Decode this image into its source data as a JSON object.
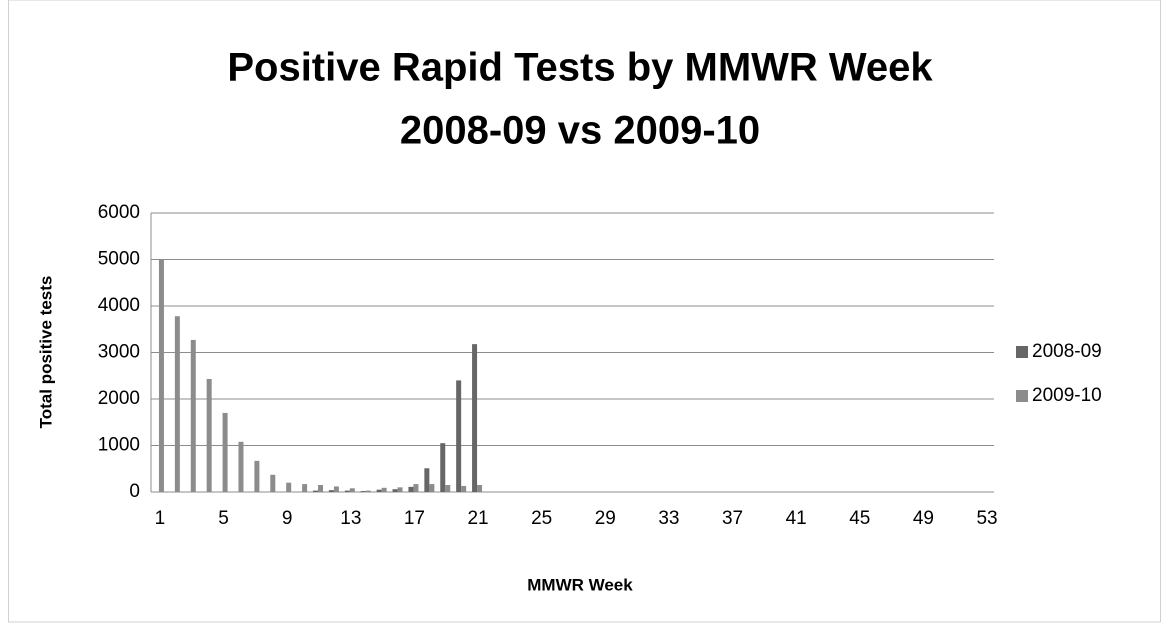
{
  "chart_data": {
    "type": "bar",
    "title": [
      "Positive Rapid Tests by MMWR Week",
      "2008-09 vs 2009-10"
    ],
    "x_label": "MMWR Week",
    "y_label": "Total positive tests",
    "categories": [
      1,
      null,
      null,
      null,
      5,
      null,
      null,
      null,
      9,
      null,
      null,
      null,
      13,
      null,
      null,
      null,
      17,
      null,
      null,
      null,
      21,
      null,
      null,
      null,
      25,
      null,
      null,
      null,
      29,
      null,
      null,
      null,
      33,
      null,
      null,
      null,
      37,
      null,
      null,
      null,
      41,
      null,
      null,
      null,
      45,
      null,
      null,
      null,
      49,
      null,
      null,
      null,
      53
    ],
    "series": [
      {
        "name": "2008-09",
        "color": "#666666",
        "values": [
          0,
          0,
          0,
          0,
          0,
          0,
          0,
          0,
          0,
          0,
          30,
          40,
          30,
          20,
          50,
          60,
          110,
          510,
          1050,
          2400,
          3180,
          null,
          null,
          null,
          null,
          null,
          null,
          null,
          null,
          null,
          null,
          null,
          null,
          null,
          null,
          null,
          null,
          null,
          null,
          null,
          null,
          null,
          null,
          null,
          null,
          null,
          null,
          null,
          null,
          null,
          null,
          null,
          null
        ]
      },
      {
        "name": "2009-10",
        "color": "#8c8c8c",
        "values": [
          5000,
          3780,
          3270,
          2430,
          1700,
          1080,
          670,
          370,
          200,
          170,
          150,
          120,
          80,
          30,
          90,
          100,
          170,
          170,
          150,
          130,
          150,
          null,
          null,
          null,
          null,
          null,
          null,
          null,
          null,
          null,
          null,
          null,
          null,
          null,
          null,
          null,
          null,
          null,
          null,
          null,
          null,
          null,
          null,
          null,
          null,
          null,
          null,
          null,
          null,
          null,
          null,
          null,
          null
        ]
      }
    ],
    "ylim": [
      0,
      6000
    ],
    "yticks": [
      0,
      1000,
      2000,
      3000,
      4000,
      5000,
      6000
    ],
    "grid": true,
    "legend": "right"
  }
}
